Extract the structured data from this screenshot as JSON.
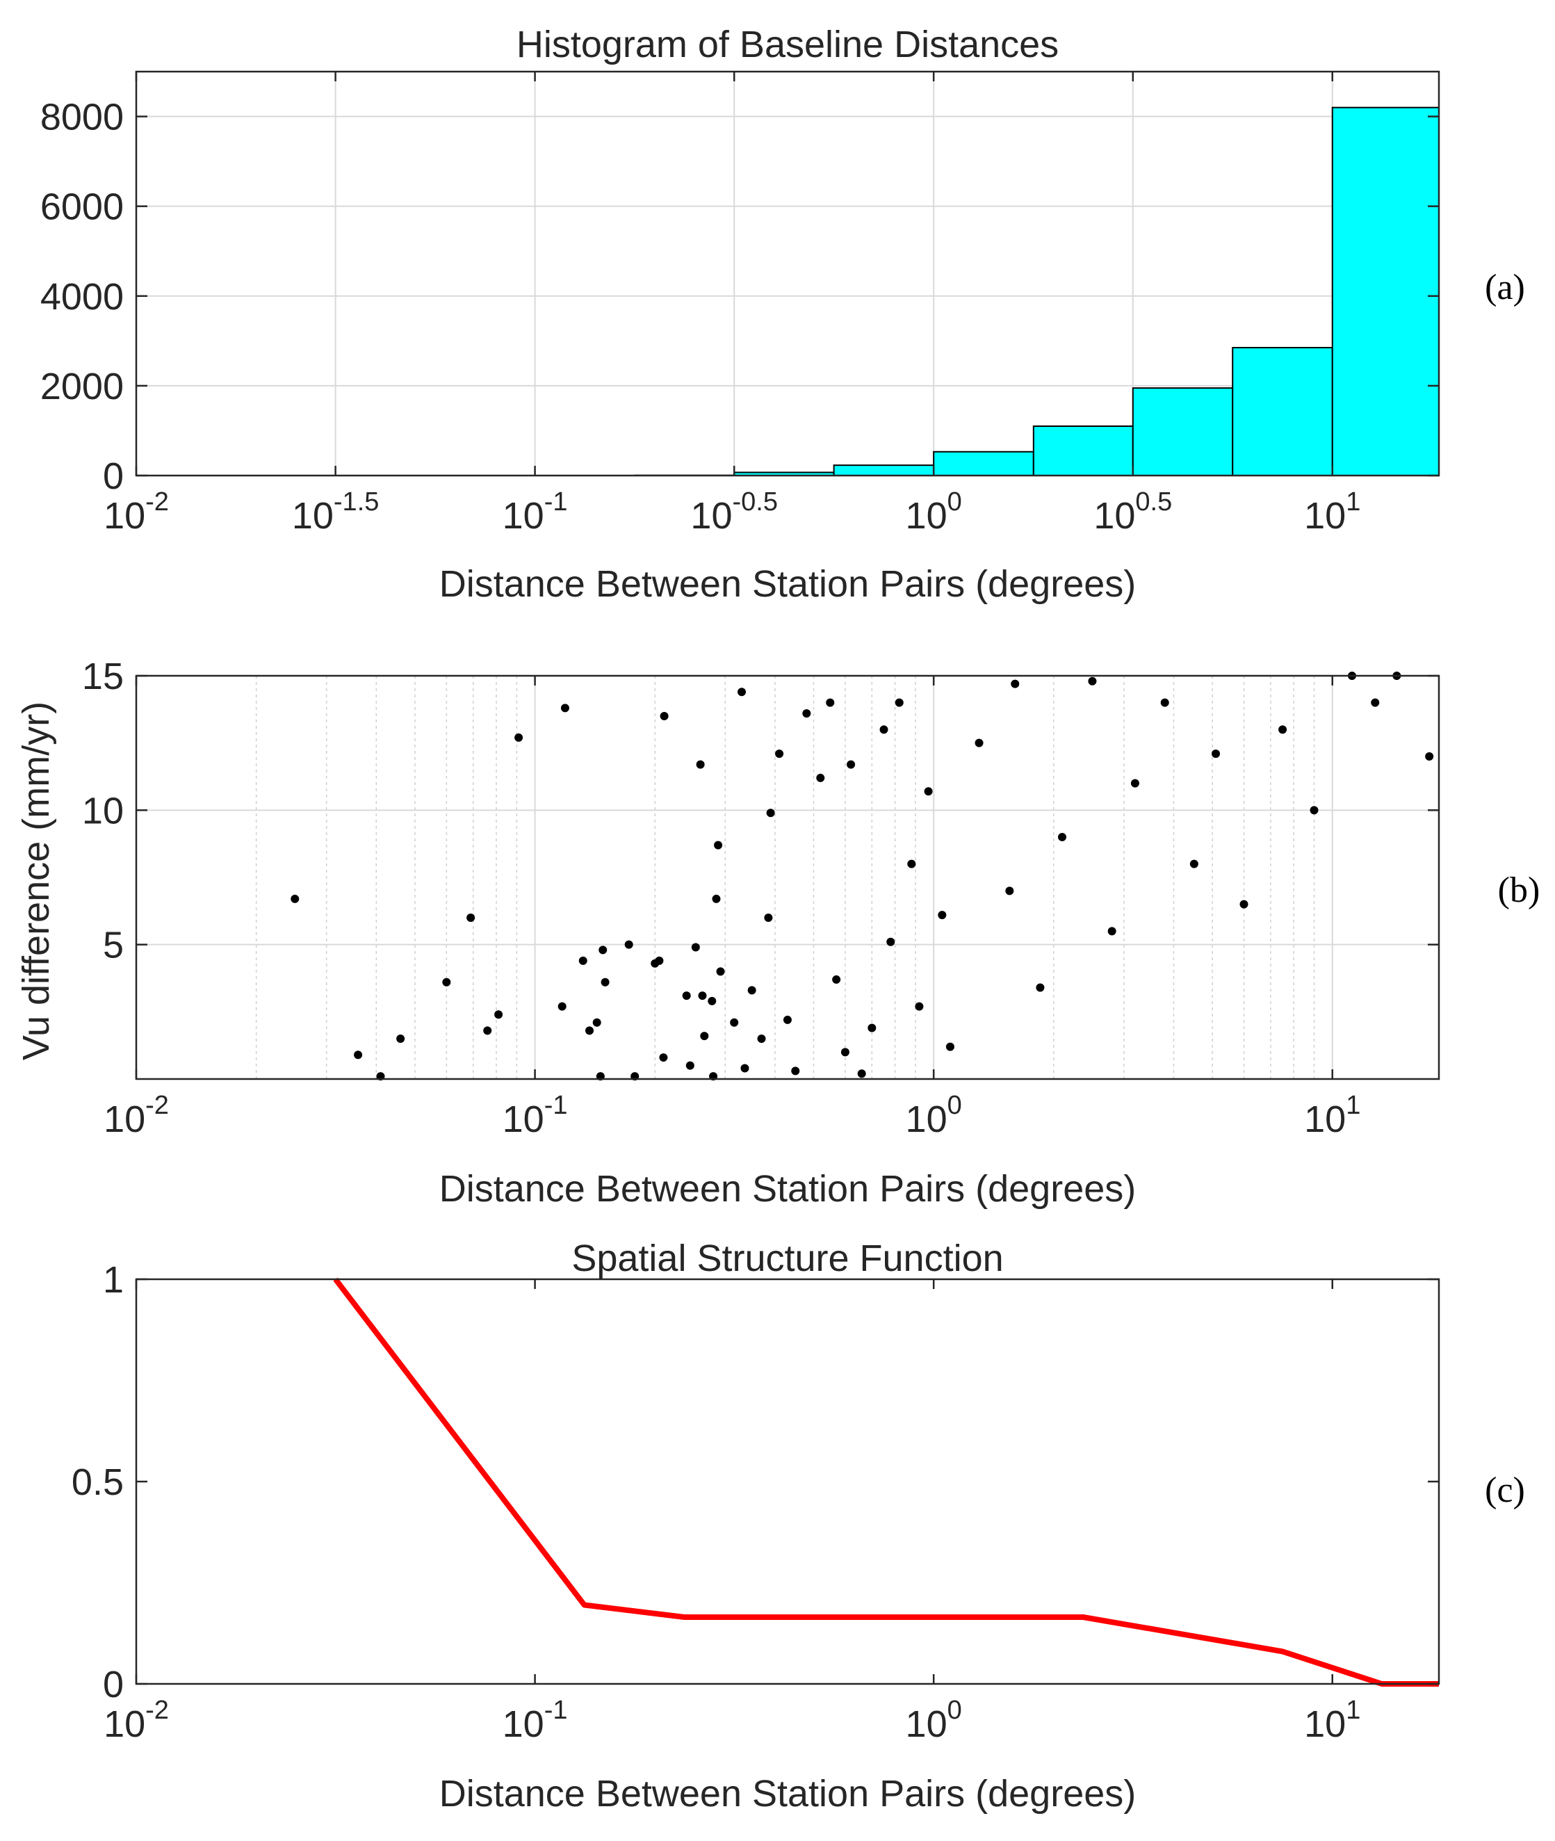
{
  "figure": {
    "panel_labels": [
      "(a)",
      "(b)",
      "(c)"
    ]
  },
  "chart_data": [
    {
      "id": "a",
      "type": "bar",
      "title": "Histogram of Baseline Distances",
      "xlabel": "Distance Between Station Pairs (degrees)",
      "ylabel": "",
      "xscale": "log",
      "xlim": [
        0.01,
        18.5
      ],
      "ylim": [
        0,
        9000
      ],
      "x_tick_values": [
        0.01,
        0.0316,
        0.1,
        0.316,
        1,
        3.16,
        10
      ],
      "x_tick_labels": [
        {
          "base": "10",
          "exp": "-2"
        },
        {
          "base": "10",
          "exp": "-1.5"
        },
        {
          "base": "10",
          "exp": "-1"
        },
        {
          "base": "10",
          "exp": "-0.5"
        },
        {
          "base": "10",
          "exp": "0"
        },
        {
          "base": "10",
          "exp": "0.5"
        },
        {
          "base": "10",
          "exp": "1"
        }
      ],
      "y_ticks": [
        0,
        2000,
        4000,
        6000,
        8000
      ],
      "y_tick_labels": [
        "0",
        "2000",
        "4000",
        "6000",
        "8000"
      ],
      "grid": true,
      "bar_color": "#00ffff",
      "bins": [
        {
          "x0": 0.178,
          "x1": 0.316,
          "value": 5
        },
        {
          "x0": 0.316,
          "x1": 0.562,
          "value": 70
        },
        {
          "x0": 0.562,
          "x1": 1.0,
          "value": 230
        },
        {
          "x0": 1.0,
          "x1": 1.78,
          "value": 530
        },
        {
          "x0": 1.78,
          "x1": 3.16,
          "value": 1100
        },
        {
          "x0": 3.16,
          "x1": 5.62,
          "value": 1950
        },
        {
          "x0": 5.62,
          "x1": 10.0,
          "value": 2850
        },
        {
          "x0": 10.0,
          "x1": 18.5,
          "value": 8200
        }
      ]
    },
    {
      "id": "b",
      "type": "scatter",
      "title": "",
      "xlabel": "Distance Between Station Pairs (degrees)",
      "ylabel": "Vu difference (mm/yr)",
      "xscale": "log",
      "xlim": [
        0.01,
        18.5
      ],
      "ylim": [
        0,
        15
      ],
      "x_tick_values": [
        0.01,
        0.1,
        1,
        10
      ],
      "x_tick_labels": [
        {
          "base": "10",
          "exp": "-2"
        },
        {
          "base": "10",
          "exp": "-1"
        },
        {
          "base": "10",
          "exp": "0"
        },
        {
          "base": "10",
          "exp": "1"
        }
      ],
      "y_ticks": [
        5,
        10,
        15
      ],
      "y_tick_labels": [
        "5",
        "10",
        "15"
      ],
      "grid": true,
      "minor_grid": true,
      "marker_color": "#000000",
      "points": [
        [
          0.025,
          6.7
        ],
        [
          0.036,
          0.9
        ],
        [
          0.041,
          0.1
        ],
        [
          0.046,
          1.5
        ],
        [
          0.06,
          3.6
        ],
        [
          0.069,
          6.0
        ],
        [
          0.076,
          1.8
        ],
        [
          0.081,
          2.4
        ],
        [
          0.091,
          12.7
        ],
        [
          0.117,
          2.7
        ],
        [
          0.119,
          13.8
        ],
        [
          0.132,
          4.4
        ],
        [
          0.137,
          1.8
        ],
        [
          0.143,
          2.1
        ],
        [
          0.146,
          0.1
        ],
        [
          0.148,
          4.8
        ],
        [
          0.15,
          3.6
        ],
        [
          0.172,
          5.0
        ],
        [
          0.178,
          0.1
        ],
        [
          0.2,
          4.3
        ],
        [
          0.205,
          4.4
        ],
        [
          0.211,
          13.5
        ],
        [
          0.21,
          0.8
        ],
        [
          0.24,
          3.1
        ],
        [
          0.245,
          0.5
        ],
        [
          0.253,
          4.9
        ],
        [
          0.26,
          11.7
        ],
        [
          0.263,
          3.1
        ],
        [
          0.266,
          1.6
        ],
        [
          0.278,
          2.9
        ],
        [
          0.28,
          0.1
        ],
        [
          0.285,
          6.7
        ],
        [
          0.288,
          8.7
        ],
        [
          0.292,
          4.0
        ],
        [
          0.316,
          2.1
        ],
        [
          0.33,
          14.4
        ],
        [
          0.336,
          0.4
        ],
        [
          0.35,
          3.3
        ],
        [
          0.37,
          1.5
        ],
        [
          0.385,
          6.0
        ],
        [
          0.39,
          9.9
        ],
        [
          0.41,
          12.1
        ],
        [
          0.43,
          2.2
        ],
        [
          0.45,
          0.3
        ],
        [
          0.48,
          13.6
        ],
        [
          0.52,
          11.2
        ],
        [
          0.55,
          14.0
        ],
        [
          0.57,
          3.7
        ],
        [
          0.6,
          1.0
        ],
        [
          0.62,
          11.7
        ],
        [
          0.66,
          0.2
        ],
        [
          0.7,
          1.9
        ],
        [
          0.75,
          13.0
        ],
        [
          0.78,
          5.1
        ],
        [
          0.82,
          14.0
        ],
        [
          0.88,
          8.0
        ],
        [
          0.92,
          2.7
        ],
        [
          0.97,
          10.7
        ],
        [
          1.05,
          6.1
        ],
        [
          1.1,
          1.2
        ],
        [
          1.3,
          12.5
        ],
        [
          1.55,
          7.0
        ],
        [
          1.6,
          14.7
        ],
        [
          1.85,
          3.4
        ],
        [
          2.1,
          9.0
        ],
        [
          2.5,
          14.8
        ],
        [
          2.8,
          5.5
        ],
        [
          3.2,
          11.0
        ],
        [
          3.8,
          14.0
        ],
        [
          4.5,
          8.0
        ],
        [
          5.1,
          12.1
        ],
        [
          6.0,
          6.5
        ],
        [
          7.5,
          13.0
        ],
        [
          9.0,
          10.0
        ],
        [
          11.2,
          15.0
        ],
        [
          12.8,
          14.0
        ],
        [
          14.5,
          15.0
        ],
        [
          17.5,
          12.0
        ]
      ]
    },
    {
      "id": "c",
      "type": "line",
      "title": "Spatial Structure Function",
      "xlabel": "Distance Between Station Pairs (degrees)",
      "ylabel": "",
      "xscale": "log",
      "xlim": [
        0.01,
        18.5
      ],
      "ylim": [
        0,
        1
      ],
      "x_tick_values": [
        0.01,
        0.1,
        1,
        10
      ],
      "x_tick_labels": [
        {
          "base": "10",
          "exp": "-2"
        },
        {
          "base": "10",
          "exp": "-1"
        },
        {
          "base": "10",
          "exp": "0"
        },
        {
          "base": "10",
          "exp": "1"
        }
      ],
      "y_ticks": [
        0,
        0.5,
        1
      ],
      "y_tick_labels": [
        "0",
        "0.5",
        "1"
      ],
      "grid": false,
      "line_color": "#ff0000",
      "x": [
        0.0316,
        0.133,
        0.237,
        2.37,
        7.5,
        13.3,
        18.5
      ],
      "y": [
        1.0,
        0.195,
        0.165,
        0.165,
        0.08,
        0.0,
        0.0
      ]
    }
  ]
}
